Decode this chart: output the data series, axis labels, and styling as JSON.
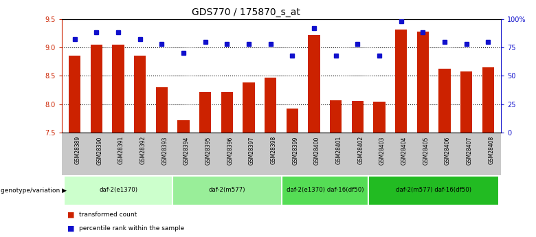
{
  "title": "GDS770 / 175870_s_at",
  "samples": [
    "GSM28389",
    "GSM28390",
    "GSM28391",
    "GSM28392",
    "GSM28393",
    "GSM28394",
    "GSM28395",
    "GSM28396",
    "GSM28397",
    "GSM28398",
    "GSM28399",
    "GSM28400",
    "GSM28401",
    "GSM28402",
    "GSM28403",
    "GSM28404",
    "GSM28405",
    "GSM28406",
    "GSM28407",
    "GSM28408"
  ],
  "bar_values": [
    8.85,
    9.05,
    9.05,
    8.85,
    8.3,
    7.72,
    8.22,
    8.22,
    8.38,
    8.47,
    7.93,
    9.22,
    8.07,
    8.06,
    8.05,
    9.32,
    9.28,
    8.63,
    8.58,
    8.65
  ],
  "dot_values": [
    82,
    88,
    88,
    82,
    78,
    70,
    80,
    78,
    78,
    78,
    68,
    92,
    68,
    78,
    68,
    98,
    88,
    80,
    78,
    80
  ],
  "ylim_left": [
    7.5,
    9.5
  ],
  "ylim_right": [
    0,
    100
  ],
  "yticks_left": [
    7.5,
    8.0,
    8.5,
    9.0,
    9.5
  ],
  "yticks_right": [
    0,
    25,
    50,
    75,
    100
  ],
  "ytick_labels_right": [
    "0",
    "25",
    "50",
    "75",
    "100%"
  ],
  "grid_values": [
    8.0,
    8.5,
    9.0
  ],
  "bar_color": "#CC2200",
  "dot_color": "#1010CC",
  "groups": [
    {
      "label": "daf-2(e1370)",
      "start": 0,
      "end": 5,
      "color": "#CCFFCC"
    },
    {
      "label": "daf-2(m577)",
      "start": 5,
      "end": 10,
      "color": "#99EE99"
    },
    {
      "label": "daf-2(e1370) daf-16(df50)",
      "start": 10,
      "end": 14,
      "color": "#55DD55"
    },
    {
      "label": "daf-2(m577) daf-16(df50)",
      "start": 14,
      "end": 20,
      "color": "#22BB22"
    }
  ],
  "group_row_label": "genotype/variation",
  "legend_bar_label": "transformed count",
  "legend_dot_label": "percentile rank within the sample",
  "title_fontsize": 10,
  "tick_fontsize": 7,
  "bar_width": 0.55,
  "figsize": [
    7.8,
    3.45
  ],
  "dpi": 100
}
